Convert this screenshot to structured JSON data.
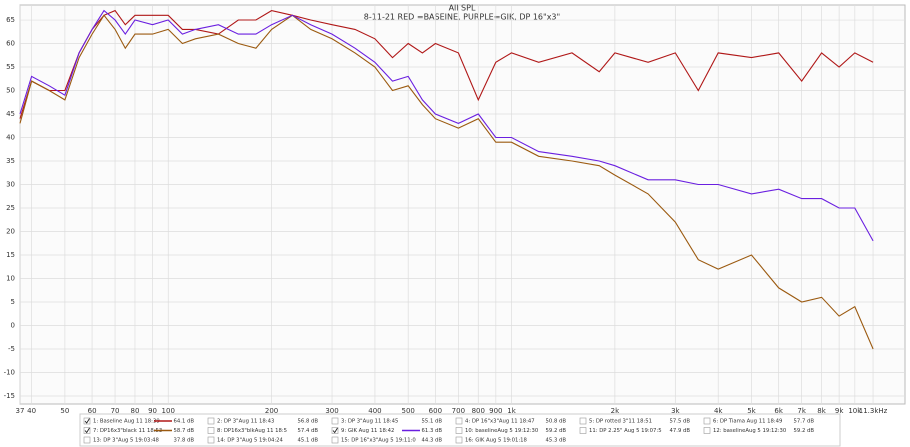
{
  "chart_data": {
    "type": "line",
    "title": "All SPL",
    "subtitle": "8-11-21 RED =BASEINE, PURPLE=GIK, DP 16\"x3\"",
    "log_x": true,
    "grid": true,
    "xlim": [
      37,
      14000
    ],
    "ylim": [
      -16.7,
      68.2
    ],
    "xticks": [
      37,
      40,
      50,
      60,
      70,
      80,
      90,
      100,
      200,
      300,
      400,
      500,
      600,
      700,
      800,
      900,
      {
        "value": 1000,
        "label": "1k"
      },
      {
        "value": 2000,
        "label": "2k"
      },
      {
        "value": 3000,
        "label": "3k"
      },
      {
        "value": 4000,
        "label": "4k"
      },
      {
        "value": 5000,
        "label": "5k"
      },
      {
        "value": 6000,
        "label": "6k"
      },
      {
        "value": 7000,
        "label": "7k"
      },
      {
        "value": 8000,
        "label": "8k"
      },
      {
        "value": 9000,
        "label": "9k"
      },
      {
        "value": 10000,
        "label": "10k"
      },
      {
        "value": 11300,
        "label": "11.3kHz"
      }
    ],
    "yticks": [
      65,
      60,
      55,
      50,
      45,
      40,
      35,
      30,
      25,
      20,
      15,
      10,
      5,
      0,
      -5,
      -10,
      -15
    ],
    "x": [
      37,
      40,
      45,
      50,
      55,
      60,
      65,
      70,
      75,
      80,
      90,
      100,
      110,
      120,
      140,
      160,
      180,
      200,
      230,
      260,
      300,
      350,
      400,
      450,
      500,
      550,
      600,
      700,
      800,
      900,
      1000,
      1200,
      1500,
      1800,
      2000,
      2500,
      3000,
      3500,
      4000,
      5000,
      6000,
      7000,
      8000,
      9000,
      10000,
      11300
    ],
    "series": [
      {
        "name": "1: Baseline Aug 11 18:39",
        "level": "64.1 dB",
        "color": "#b01818",
        "checked": true,
        "values": [
          44,
          52,
          50,
          50,
          58,
          63,
          66,
          67,
          64,
          66,
          66,
          66,
          63,
          63,
          62,
          65,
          65,
          67,
          66,
          65,
          64,
          63,
          61,
          57,
          60,
          58,
          60,
          58,
          48,
          56,
          58,
          56,
          58,
          54,
          58,
          56,
          58,
          50,
          58,
          57,
          58,
          52,
          58,
          55,
          58,
          56
        ]
      },
      {
        "name": "2: DP 3\"Aug 11 18:43",
        "level": "56.8 dB",
        "color": "#6b7a3a",
        "checked": false
      },
      {
        "name": "3: DP 3\"Aug 11 18:45",
        "level": "55.1 dB",
        "color": "#2040c0",
        "checked": false
      },
      {
        "name": "4: DP 16\"x3\"Aug 11 18:47",
        "level": "50.8 dB",
        "color": "#d07010",
        "checked": false
      },
      {
        "name": "5: DP rotted 3\"11 18:51",
        "level": "57.5 dB",
        "color": "#2a9a2a",
        "checked": false
      },
      {
        "name": "6: DP Tiama Aug 11 18:49",
        "level": "57.7 dB",
        "color": "#203890",
        "checked": false
      },
      {
        "name": "7: DP16x3\"black 11 18:53",
        "level": "58.7 dB",
        "color": "#9b5a10",
        "checked": true,
        "values": [
          43,
          52,
          50,
          48,
          57,
          62,
          66,
          63,
          59,
          62,
          62,
          63,
          60,
          61,
          62,
          60,
          59,
          63,
          66,
          63,
          61,
          58,
          55,
          50,
          51,
          47,
          44,
          42,
          44,
          39,
          39,
          36,
          35,
          34,
          32,
          28,
          22,
          14,
          12,
          15,
          8,
          5,
          6,
          2,
          4,
          -5
        ]
      },
      {
        "name": "8: DP16x3\"blkAug 11 18:5",
        "level": "57.4 dB",
        "color": "#209070",
        "checked": false
      },
      {
        "name": "9: GIK Aug 11 18:42",
        "level": "61.3 dB",
        "color": "#6a1fe0",
        "checked": true,
        "values": [
          45,
          53,
          51,
          49,
          58,
          63,
          67,
          65,
          62,
          65,
          64,
          65,
          62,
          63,
          64,
          62,
          62,
          64,
          66,
          64,
          62,
          59,
          56,
          52,
          53,
          48,
          45,
          43,
          45,
          40,
          40,
          37,
          36,
          35,
          34,
          31,
          31,
          30,
          30,
          28,
          29,
          27,
          27,
          25,
          25,
          18
        ]
      },
      {
        "name": "10: baselineAug 5 19:12:30",
        "level": "59.2 dB",
        "color": "#3060c0",
        "checked": false
      },
      {
        "name": "11: DP 2.25\" Aug 5 19:07:5",
        "level": "47.9 dB",
        "color": "#c02020",
        "checked": false
      },
      {
        "name": "12: baselineAug 5 19:12:30",
        "level": "59.2 dB",
        "color": "#304060",
        "checked": false
      },
      {
        "name": "13: DP 3\"Aug 5 19:03:48",
        "level": "37.8 dB",
        "color": "#3050b0",
        "checked": false
      },
      {
        "name": "14: DP 3\"Aug 5 19:04:24",
        "level": "45.1 dB",
        "color": "#d07010",
        "checked": false
      },
      {
        "name": "15: DP 16\"x3\"Aug 5 19:11:0",
        "level": "44.3 dB",
        "color": "#2a9a2a",
        "checked": false
      },
      {
        "name": "16: GIK Aug 5 19:01:18",
        "level": "45.3 dB",
        "color": "#3050b0",
        "checked": false
      }
    ]
  }
}
